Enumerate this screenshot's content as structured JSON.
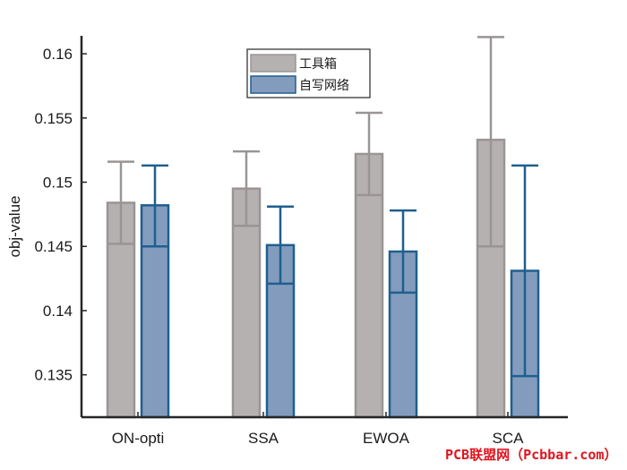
{
  "chart_data": {
    "type": "bar",
    "categories": [
      "ON-opti",
      "SSA",
      "EWOA",
      "SCA"
    ],
    "ylabel": "obj-value",
    "xlabel": "",
    "ylim": [
      0.1317,
      0.1614
    ],
    "yticks": [
      0.135,
      0.14,
      0.145,
      0.15,
      0.155,
      0.16
    ],
    "ytick_labels": [
      "0.135",
      "0.14",
      "0.145",
      "0.15",
      "0.155",
      "0.16"
    ],
    "legend_position": "top-center",
    "series": [
      {
        "name": "工具箱",
        "color": "#b6b1b1",
        "edge_color": "#9a9595",
        "values": [
          0.1484,
          0.1495,
          0.1522,
          0.1533
        ],
        "err_low": [
          0.1452,
          0.1466,
          0.149,
          0.145
        ],
        "err_high": [
          0.1516,
          0.1524,
          0.1554,
          0.1613
        ]
      },
      {
        "name": "自写网络",
        "color": "#839cbd",
        "edge_color": "#1f5f8f",
        "values": [
          0.1482,
          0.1451,
          0.1446,
          0.1431
        ],
        "err_low": [
          0.145,
          0.1421,
          0.1414,
          0.1349
        ],
        "err_high": [
          0.1513,
          0.1481,
          0.1478,
          0.1513
        ]
      }
    ]
  },
  "watermark": "PCB联盟网（Pcbbar.com）"
}
